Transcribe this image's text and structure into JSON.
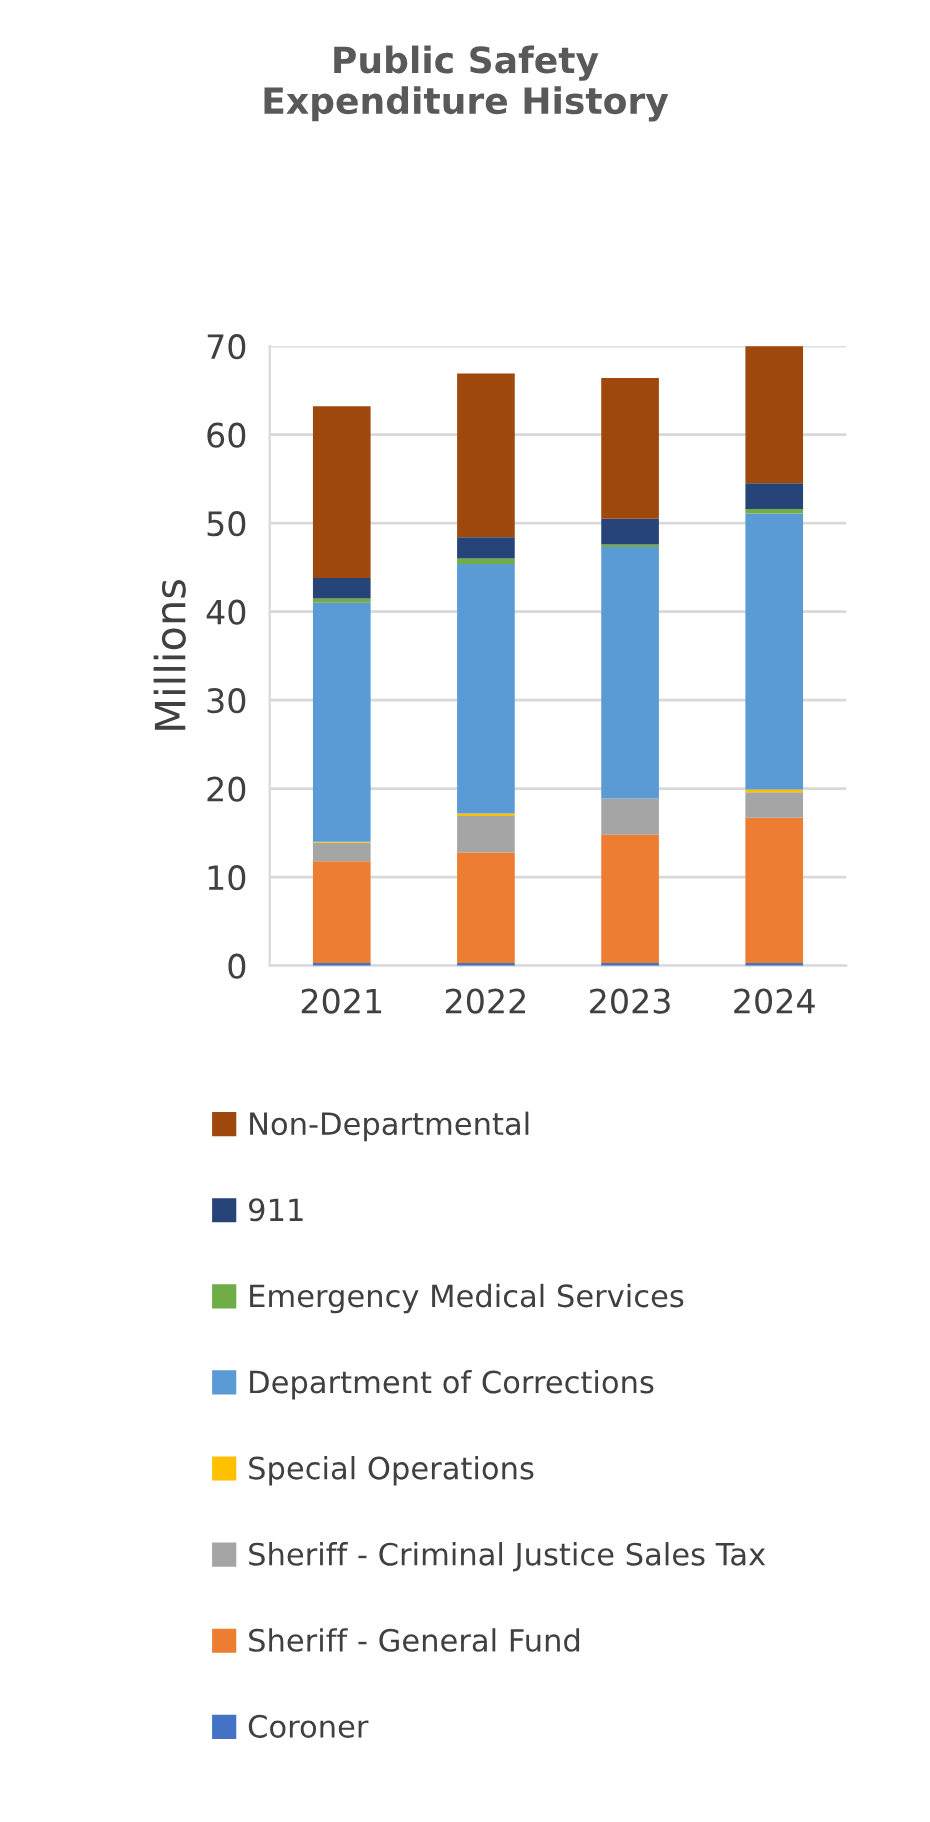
{
  "chart_data": {
    "type": "bar",
    "stacked": true,
    "title": "Public Safety\nExpenditure History",
    "ylabel": "Millions",
    "categories": [
      "2021",
      "2022",
      "2023",
      "2024"
    ],
    "ylim": [
      0,
      70
    ],
    "yticks": [
      0,
      10,
      20,
      30,
      40,
      50,
      60,
      70
    ],
    "grid": "y",
    "legend": "bottom",
    "series": [
      {
        "name": "Coroner",
        "color": "#4472c4",
        "values": [
          0.3,
          0.3,
          0.3,
          0.3
        ]
      },
      {
        "name": "Sheriff - General Fund",
        "color": "#ed7d31",
        "values": [
          11.5,
          12.5,
          14.5,
          16.4
        ]
      },
      {
        "name": "Sheriff - Criminal Justice Sales Tax",
        "color": "#a5a5a5",
        "values": [
          2.1,
          4.1,
          4.1,
          2.9
        ]
      },
      {
        "name": "Special Operations",
        "color": "#ffc000",
        "values": [
          0.1,
          0.3,
          null,
          0.3
        ]
      },
      {
        "name": "Department of Corrections",
        "color": "#5b9bd5",
        "values": [
          27.0,
          28.2,
          28.4,
          31.2
        ]
      },
      {
        "name": "Emergency Medical Services",
        "color": "#70ad47",
        "values": [
          0.5,
          0.6,
          0.3,
          0.5
        ]
      },
      {
        "name": "911",
        "color": "#264478",
        "values": [
          2.3,
          2.4,
          2.9,
          2.9
        ]
      },
      {
        "name": "Non-Departmental",
        "color": "#9e480e",
        "values": [
          19.4,
          18.5,
          15.9,
          15.6
        ]
      }
    ]
  }
}
